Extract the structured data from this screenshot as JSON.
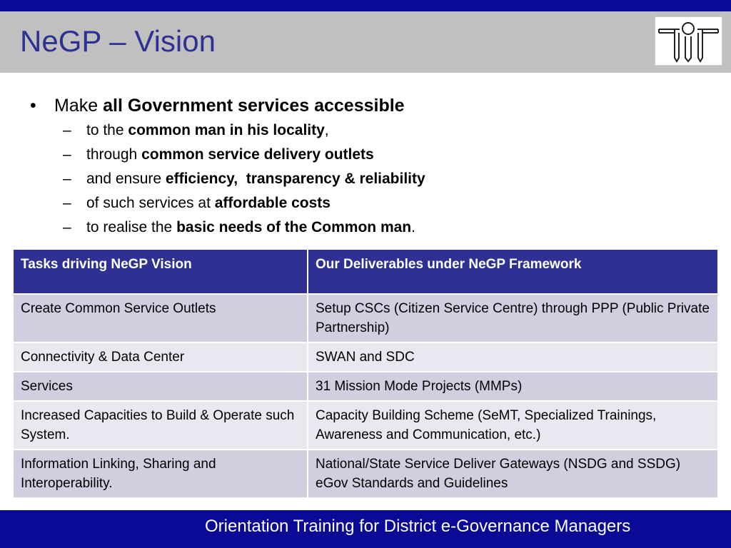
{
  "slide": {
    "title": "NeGP – Vision",
    "footer": "Orientation Training for District e-Governance Managers"
  },
  "bullet": {
    "marker": "•",
    "prefix": "Make ",
    "bold": "all Government services accessible"
  },
  "sub_items": [
    {
      "dash": "–",
      "prefix": "to the ",
      "bold": "common man in his locality",
      "suffix": ","
    },
    {
      "dash": "–",
      "prefix": "through ",
      "bold": "common service delivery outlets",
      "suffix": ""
    },
    {
      "dash": "–",
      "prefix": "and ensure ",
      "bold": "efficiency,  transparency & reliability",
      "suffix": ""
    },
    {
      "dash": "–",
      "prefix": "of such services at ",
      "bold": "affordable costs",
      "suffix": ""
    },
    {
      "dash": "–",
      "prefix": "to realise the ",
      "bold": "basic needs of the Common man",
      "suffix": "."
    }
  ],
  "table": {
    "headers": [
      "Tasks driving NeGP Vision",
      "Our Deliverables under NeGP Framework"
    ],
    "rows": [
      [
        "Create Common Service Outlets",
        "Setup CSCs (Citizen Service Centre) through PPP (Public Private Partnership)"
      ],
      [
        "Connectivity & Data Center",
        "SWAN and SDC"
      ],
      [
        "Services",
        "31 Mission Mode Projects (MMPs)"
      ],
      [
        "Increased Capacities to Build & Operate such System.",
        "Capacity Building Scheme (SeMT, Specialized Trainings, Awareness and Communication, etc.)"
      ],
      [
        "Information Linking, Sharing and Interoperability.",
        "National/State Service Deliver Gateways (NSDG and SSDG)\neGov Standards and Guidelines"
      ]
    ]
  },
  "colors": {
    "bar_blue": "#0a0a96",
    "title_blue": "#2e3192",
    "header_gray": "#c0c0c0",
    "table_header": "#2e3192",
    "row_dark": "#cfcfe0",
    "row_light": "#e8e8f0"
  },
  "icons": {
    "logo": "institute-logo-icon"
  }
}
